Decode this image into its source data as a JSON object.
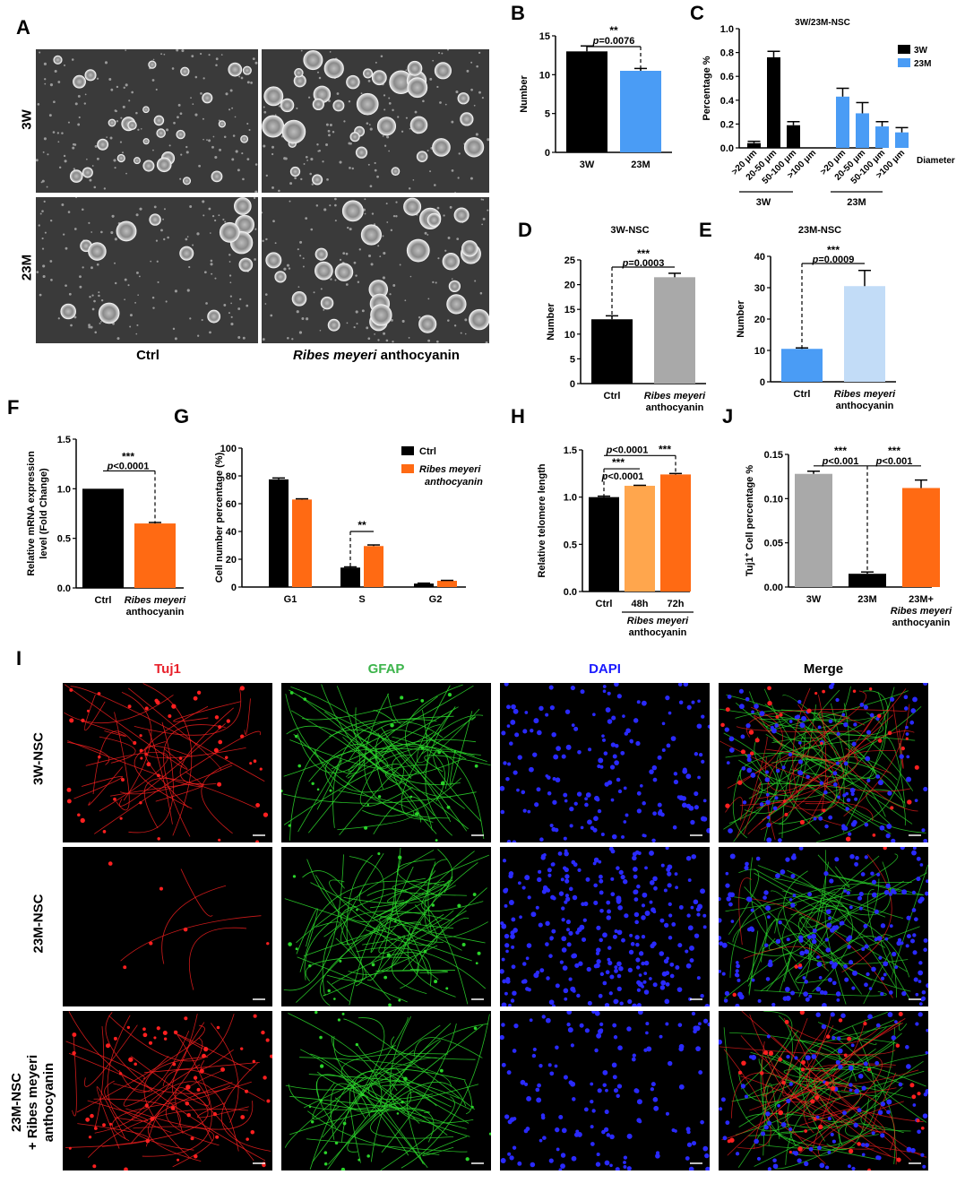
{
  "panelA": {
    "label": "A",
    "row_labels": [
      "3W",
      "23M"
    ],
    "col_labels": [
      "Ctrl",
      "Ribes meyeri"
    ],
    "col2_suffix": " anthocyanin"
  },
  "panelI": {
    "label": "I",
    "col_labels": [
      "Tuj1",
      "GFAP",
      "DAPI",
      "Merge"
    ],
    "col_colors": [
      "#e8212b",
      "#3cb44b",
      "#1a1aff",
      "#000000"
    ],
    "row_labels": [
      "3W-NSC",
      "23M-NSC"
    ],
    "row3_lines": [
      "23M-NSC",
      "+ Ribes meyeri",
      "anthocyanin"
    ]
  },
  "chart_data": [
    {
      "panel": "B",
      "type": "bar",
      "categories": [
        "3W",
        "23M"
      ],
      "values": [
        13.0,
        10.5
      ],
      "errors": [
        0.7,
        0.3
      ],
      "colors": [
        "#000000",
        "#4a9cf5"
      ],
      "ylabel": "Number",
      "ylim": [
        0,
        15
      ],
      "yticks": [
        0,
        5,
        10,
        15
      ],
      "annotations": [
        {
          "stars": "**",
          "text": "p=0.0076"
        }
      ]
    },
    {
      "panel": "C",
      "type": "bar",
      "title": "3W/23M-NSC",
      "ylabel": "Percentage %",
      "xlabel": "Diameter",
      "ylim": [
        0,
        1.0
      ],
      "yticks": [
        0.0,
        0.2,
        0.4,
        0.6,
        0.8,
        1.0
      ],
      "legend": [
        "3W",
        "23M"
      ],
      "legend_colors": [
        "#000000",
        "#4a9cf5"
      ],
      "categories": [
        ">20 μm",
        "20-50 μm",
        "50-100 μm",
        ">100 μm"
      ],
      "series": [
        {
          "name": "3W",
          "values": [
            0.04,
            0.76,
            0.19,
            0.0
          ],
          "errors": [
            0.015,
            0.05,
            0.03,
            0
          ]
        },
        {
          "name": "23M",
          "values": [
            0.43,
            0.29,
            0.18,
            0.13
          ],
          "errors": [
            0.07,
            0.09,
            0.04,
            0.04
          ]
        }
      ],
      "group_labels": [
        "3W",
        "23M"
      ]
    },
    {
      "panel": "D",
      "type": "bar",
      "title": "3W-NSC",
      "categories": [
        "Ctrl",
        "Ribes meyeri anthocyanin"
      ],
      "values": [
        13.0,
        21.5
      ],
      "errors": [
        0.7,
        0.8
      ],
      "colors": [
        "#000000",
        "#a9a9a9"
      ],
      "ylabel": "Number",
      "ylim": [
        0,
        25
      ],
      "yticks": [
        0,
        5,
        10,
        15,
        20,
        25
      ],
      "annotations": [
        {
          "stars": "***",
          "text": "p=0.0003"
        }
      ]
    },
    {
      "panel": "E",
      "type": "bar",
      "title": "23M-NSC",
      "categories": [
        "Ctrl",
        "Ribes meyeri anthocyanin"
      ],
      "values": [
        10.5,
        30.5
      ],
      "errors": [
        0.3,
        5.0
      ],
      "colors": [
        "#4a9cf5",
        "#c2dcf7"
      ],
      "ylabel": "Number",
      "ylim": [
        0,
        40
      ],
      "yticks": [
        0,
        10,
        20,
        30,
        40
      ],
      "annotations": [
        {
          "stars": "***",
          "text": "p=0.0009"
        }
      ]
    },
    {
      "panel": "F",
      "type": "bar",
      "categories": [
        "Ctrl",
        "Ribes meyeri anthocyanin"
      ],
      "values": [
        1.0,
        0.65
      ],
      "errors": [
        0,
        0.01
      ],
      "colors": [
        "#000000",
        "#ff6a13"
      ],
      "ylabel": "Relative  mRNA expression level (Fold Change)",
      "ylim": [
        0,
        1.5
      ],
      "yticks": [
        0.0,
        0.5,
        1.0,
        1.5
      ],
      "annotations": [
        {
          "stars": "***",
          "text": "p<0.0001"
        }
      ]
    },
    {
      "panel": "G",
      "type": "bar",
      "categories": [
        "G1",
        "S",
        "G2"
      ],
      "series": [
        {
          "name": "Ctrl",
          "values": [
            77.5,
            14.0,
            2.5
          ],
          "errors": [
            1.0,
            0.5,
            0.3
          ]
        },
        {
          "name": "Ribes meyeri anthocyanin",
          "values": [
            63.0,
            29.5,
            4.5
          ],
          "errors": [
            0.5,
            0.8,
            0.3
          ]
        }
      ],
      "colors": [
        "#000000",
        "#ff6a13"
      ],
      "ylabel": "Cell number percentage (%)",
      "ylim": [
        0,
        100
      ],
      "yticks": [
        0,
        20,
        40,
        60,
        80,
        100
      ],
      "annotations": [
        {
          "stars": "**"
        }
      ]
    },
    {
      "panel": "H",
      "type": "bar",
      "categories": [
        "Ctrl",
        "48h",
        "72h"
      ],
      "values": [
        1.0,
        1.12,
        1.24
      ],
      "errors": [
        0.01,
        0.005,
        0.01
      ],
      "colors": [
        "#000000",
        "#ffa64d",
        "#ff6a13"
      ],
      "group_label": "Ribes meyeri anthocyanin",
      "ylabel": "Relative telomere length",
      "ylim": [
        0,
        1.5
      ],
      "yticks": [
        0.0,
        0.5,
        1.0,
        1.5
      ],
      "annotations": [
        {
          "stars": "***",
          "text": "p<0.0001"
        },
        {
          "stars": "***",
          "text": "p<0.0001"
        }
      ]
    },
    {
      "panel": "J",
      "type": "bar",
      "categories": [
        "3W",
        "23M",
        "23M+ Ribes meyeri anthocyanin"
      ],
      "values": [
        0.128,
        0.015,
        0.112
      ],
      "errors": [
        0.003,
        0.002,
        0.009
      ],
      "colors": [
        "#a9a9a9",
        "#000000",
        "#ff6a13"
      ],
      "ylabel": "Tuj1+ Cell percentage %",
      "ylim": [
        0,
        0.15
      ],
      "yticks": [
        0.0,
        0.05,
        0.1,
        0.15
      ],
      "annotations": [
        {
          "stars": "***",
          "text": "p<0.001"
        },
        {
          "stars": "***",
          "text": "p<0.001"
        }
      ]
    }
  ]
}
